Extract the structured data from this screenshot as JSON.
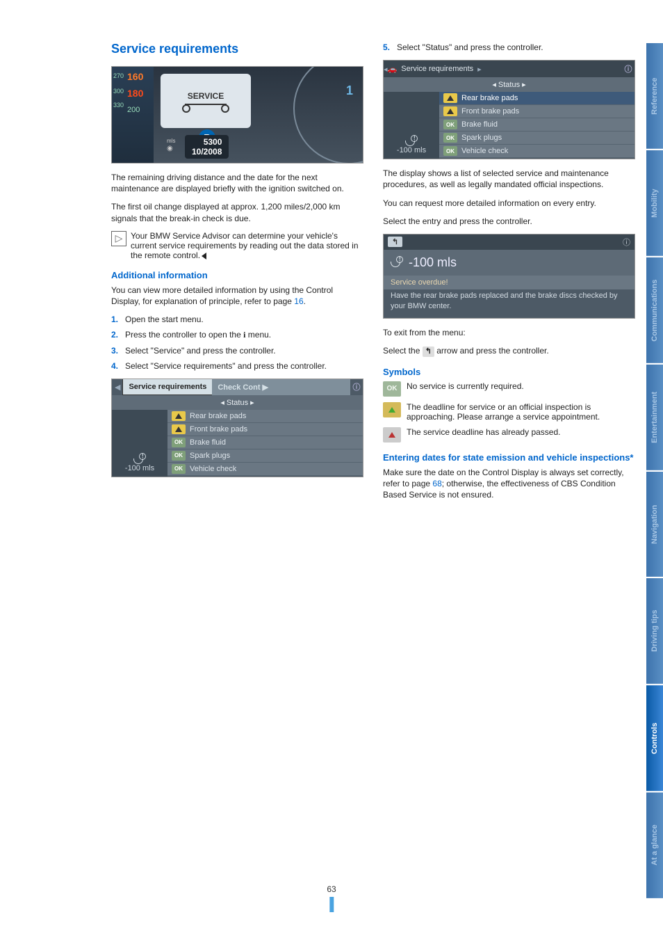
{
  "page_number": "63",
  "side_tabs": [
    "Reference",
    "Mobility",
    "Communications",
    "Entertainment",
    "Navigation",
    "Driving tips",
    "Controls",
    "At a glance"
  ],
  "active_side_tab": "Controls",
  "left": {
    "title": "Service requirements",
    "dash": {
      "n160": "160",
      "n180": "180",
      "n200": "200",
      "n270": "270",
      "n300": "300",
      "n330": "330",
      "service": "SERVICE",
      "r": "R",
      "one": "1",
      "miles": "5300",
      "date": "10/2008",
      "mls": "mls"
    },
    "p1": "The remaining driving distance and the date for the next maintenance are displayed briefly with the ignition switched on.",
    "p2": "The first oil change displayed at approx. 1,200 miles/2,000 km signals that the break-in check is due.",
    "note": "Your BMW Service Advisor can determine your vehicle's current service requirements by reading out the data stored in the remote control.",
    "sub1": "Additional information",
    "p3": "You can view more detailed information by using the Control Display, for explanation of principle, refer to page ",
    "p3_page": "16",
    "steps": [
      "Open the start menu.",
      "Press the controller to open the  menu.",
      "Select \"Service\" and press the controller.",
      "Select \"Service requirements\" and press the controller."
    ],
    "menu1": {
      "tab_active": "Service requirements",
      "tab_dim": "Check Cont",
      "sub": "Status",
      "left_val": "-100 mls",
      "rows": [
        {
          "b": "tri-y",
          "t": "Rear brake pads"
        },
        {
          "b": "tri-y",
          "t": "Front brake pads"
        },
        {
          "b": "ok",
          "t": "Brake fluid"
        },
        {
          "b": "ok",
          "t": "Spark plugs"
        },
        {
          "b": "ok",
          "t": "Vehicle check"
        }
      ]
    }
  },
  "right": {
    "step5_num": "5.",
    "step5": "Select \"Status\" and press the controller.",
    "menu2": {
      "header": "Service requirements",
      "sub": "Status",
      "left_val": "-100 mls",
      "rows": [
        {
          "b": "tri-y",
          "t": "Rear brake pads",
          "sel": true
        },
        {
          "b": "tri-y",
          "t": "Front brake pads"
        },
        {
          "b": "ok",
          "t": "Brake fluid"
        },
        {
          "b": "ok",
          "t": "Spark plugs"
        },
        {
          "b": "ok",
          "t": "Vehicle check"
        }
      ]
    },
    "p1": "The display shows a list of selected service and maintenance procedures, as well as legally mandated official inspections.",
    "p2": "You can request more detailed information on every entry.",
    "p3": "Select the entry and press the controller.",
    "detail": {
      "val": "-100 mls",
      "warn": "Service overdue!",
      "txt": "Have the rear brake pads replaced and the brake discs checked by your BMW center."
    },
    "exit1": "To exit from the menu:",
    "exit2a": "Select the ",
    "exit2b": " arrow and press the controller.",
    "symbols_title": "Symbols",
    "symbols": [
      {
        "cls": "sym-ok",
        "glyph": "OK",
        "txt": "No service is currently required."
      },
      {
        "cls": "sym-ytri",
        "glyph": "tri",
        "txt": "The deadline for service or an official inspection is approaching. Please arrange a service appointment."
      },
      {
        "cls": "sym-rtri",
        "glyph": "tri",
        "txt": "The service deadline has already passed."
      }
    ],
    "dates_title": "Entering dates for state emission and vehicle inspections*",
    "dates_p_a": "Make sure the date on the Control Display is always set correctly, refer to page ",
    "dates_page": "68",
    "dates_p_b": "; otherwise, the effectiveness of CBS Condition Based Service is not ensured."
  }
}
